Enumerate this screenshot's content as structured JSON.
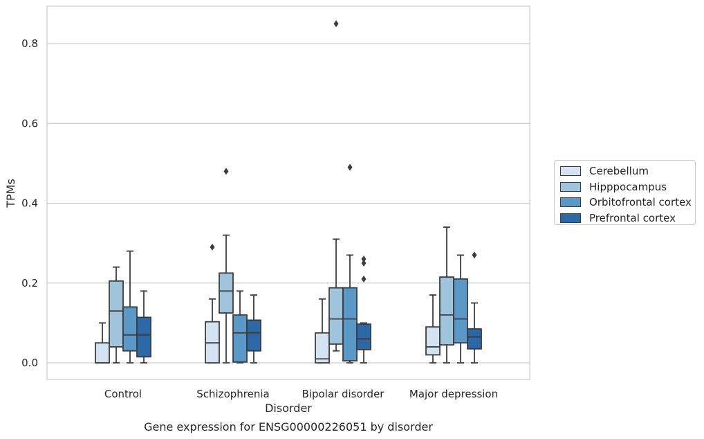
{
  "chart_data": {
    "type": "box",
    "xlabel": "Disorder",
    "ylabel": "TPMs",
    "caption": "Gene expression for ENSG00000226051 by disorder",
    "ylim": [
      -0.04,
      0.9
    ],
    "yticks": [
      "0.0",
      "0.2",
      "0.4",
      "0.6",
      "0.8"
    ],
    "grid": "horizontal",
    "legend_position": "right",
    "categories": [
      "Control",
      "Schizophrenia",
      "Bipolar disorder",
      "Major depression"
    ],
    "series": [
      {
        "name": "Cerebellum",
        "color": "#d4e3f2",
        "boxes": [
          {
            "whislo": 0.0,
            "q1": 0.0,
            "med": 0.0,
            "q3": 0.05,
            "whishi": 0.1,
            "fliers": []
          },
          {
            "whislo": 0.0,
            "q1": 0.0,
            "med": 0.05,
            "q3": 0.103,
            "whishi": 0.16,
            "fliers": [
              0.29
            ]
          },
          {
            "whislo": 0.0,
            "q1": 0.0,
            "med": 0.01,
            "q3": 0.075,
            "whishi": 0.16,
            "fliers": []
          },
          {
            "whislo": 0.0,
            "q1": 0.02,
            "med": 0.04,
            "q3": 0.09,
            "whishi": 0.17,
            "fliers": []
          }
        ]
      },
      {
        "name": "Hipppocampus",
        "color": "#a0c4dc",
        "boxes": [
          {
            "whislo": 0.0,
            "q1": 0.04,
            "med": 0.13,
            "q3": 0.205,
            "whishi": 0.24,
            "fliers": []
          },
          {
            "whislo": 0.0,
            "q1": 0.125,
            "med": 0.18,
            "q3": 0.225,
            "whishi": 0.32,
            "fliers": [
              0.48
            ]
          },
          {
            "whislo": 0.03,
            "q1": 0.047,
            "med": 0.11,
            "q3": 0.188,
            "whishi": 0.31,
            "fliers": [
              0.85
            ]
          },
          {
            "whislo": 0.0,
            "q1": 0.045,
            "med": 0.12,
            "q3": 0.215,
            "whishi": 0.34,
            "fliers": []
          }
        ]
      },
      {
        "name": "Orbitofrontal cortex",
        "color": "#5a98c8",
        "boxes": [
          {
            "whislo": 0.0,
            "q1": 0.03,
            "med": 0.07,
            "q3": 0.14,
            "whishi": 0.28,
            "fliers": []
          },
          {
            "whislo": 0.0,
            "q1": 0.002,
            "med": 0.075,
            "q3": 0.12,
            "whishi": 0.18,
            "fliers": []
          },
          {
            "whislo": 0.0,
            "q1": 0.005,
            "med": 0.11,
            "q3": 0.188,
            "whishi": 0.27,
            "fliers": [
              0.49
            ]
          },
          {
            "whislo": 0.0,
            "q1": 0.05,
            "med": 0.11,
            "q3": 0.21,
            "whishi": 0.27,
            "fliers": []
          }
        ]
      },
      {
        "name": "Prefrontal cortex",
        "color": "#2c67a6",
        "boxes": [
          {
            "whislo": 0.0,
            "q1": 0.015,
            "med": 0.07,
            "q3": 0.114,
            "whishi": 0.18,
            "fliers": []
          },
          {
            "whislo": 0.0,
            "q1": 0.03,
            "med": 0.075,
            "q3": 0.107,
            "whishi": 0.17,
            "fliers": []
          },
          {
            "whislo": 0.0,
            "q1": 0.033,
            "med": 0.06,
            "q3": 0.097,
            "whishi": 0.1,
            "fliers": [
              0.21,
              0.25,
              0.26
            ]
          },
          {
            "whislo": 0.0,
            "q1": 0.035,
            "med": 0.065,
            "q3": 0.085,
            "whishi": 0.15,
            "fliers": [
              0.27
            ]
          }
        ]
      }
    ]
  }
}
